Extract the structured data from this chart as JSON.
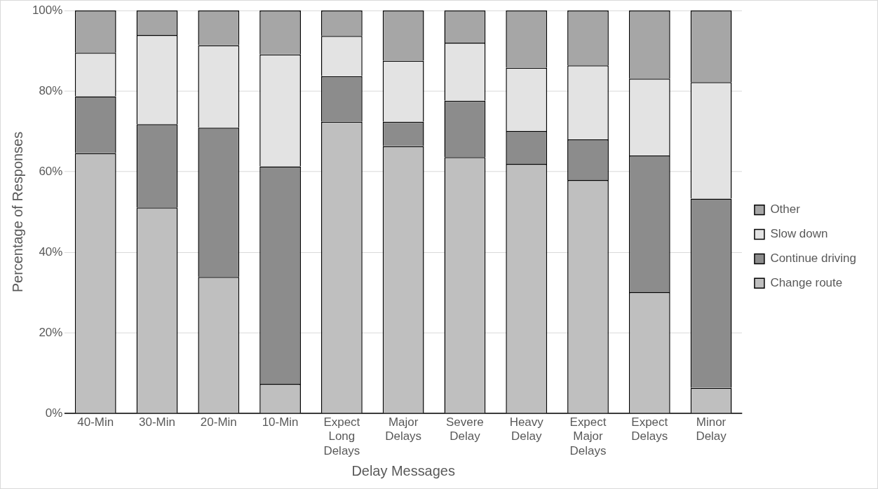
{
  "chart_data": {
    "type": "bar",
    "stacked": true,
    "xlabel": "Delay Messages",
    "ylabel": "Percentage of Responses",
    "categories": [
      "40-Min",
      "30-Min",
      "20-Min",
      "10-Min",
      "Expect Long Delays",
      "Major Delays",
      "Severe Delay",
      "Heavy Delay",
      "Expect Major Delays",
      "Expect Delays",
      "Minor Delay"
    ],
    "series": [
      {
        "name": "Change route",
        "color": "#bfbfbf",
        "values": [
          64.6,
          51.1,
          33.9,
          7.3,
          72.4,
          66.3,
          63.6,
          61.9,
          57.9,
          30.1,
          6.3
        ]
      },
      {
        "name": "Continue driving",
        "color": "#8c8c8c",
        "values": [
          14.1,
          20.7,
          37.0,
          54.0,
          11.3,
          6.1,
          14.0,
          8.2,
          10.1,
          33.9,
          47.0
        ]
      },
      {
        "name": "Slow down",
        "color": "#e3e3e3",
        "values": [
          10.8,
          22.1,
          20.5,
          27.8,
          10.0,
          15.1,
          14.4,
          15.7,
          18.4,
          19.1,
          28.9
        ]
      },
      {
        "name": "Other",
        "color": "#a6a6a6",
        "values": [
          10.5,
          6.1,
          8.6,
          10.9,
          6.3,
          12.5,
          8.0,
          14.2,
          13.6,
          16.9,
          17.8
        ]
      }
    ],
    "ylim": [
      0,
      100
    ],
    "yticks": [
      {
        "value": 0,
        "label": "0%"
      },
      {
        "value": 20,
        "label": "20%"
      },
      {
        "value": 40,
        "label": "40%"
      },
      {
        "value": 60,
        "label": "60%"
      },
      {
        "value": 80,
        "label": "80%"
      },
      {
        "value": 100,
        "label": "100%"
      }
    ],
    "grid": "y",
    "legend": "right"
  }
}
